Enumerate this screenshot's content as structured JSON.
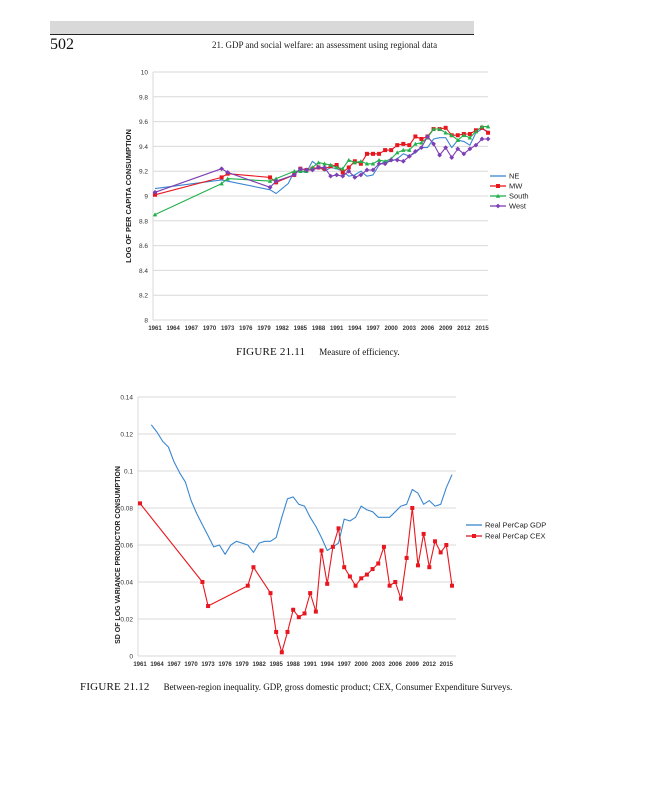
{
  "page": {
    "page_number": "502",
    "running_head": "21. GDP and social welfare: an assessment using regional data"
  },
  "figures": [
    {
      "label": "FIGURE 21.11",
      "caption": "Measure of efficiency."
    },
    {
      "label": "FIGURE 21.12",
      "caption": "Between-region inequality. GDP, gross domestic product; CEX, Consumer Expenditure Surveys."
    }
  ],
  "chart_data": [
    {
      "type": "line",
      "title": "",
      "xlabel": "",
      "ylabel": "LOG OF PER CAPITA CONSUMPTION",
      "ylim": [
        8,
        10
      ],
      "yticks": [
        "8",
        "8.2",
        "8.4",
        "8.6",
        "8.8",
        "9",
        "9.2",
        "9.4",
        "9.6",
        "9.8",
        "10"
      ],
      "xlim": [
        1961,
        2015
      ],
      "xticks": [
        "1961",
        "1964",
        "1967",
        "1970",
        "1973",
        "1976",
        "1979",
        "1982",
        "1985",
        "1988",
        "1991",
        "1994",
        "1997",
        "2000",
        "2003",
        "2006",
        "2009",
        "2012",
        "2015"
      ],
      "grid": "horizontal",
      "legend_position": "right",
      "series": [
        {
          "name": "NE",
          "color": "#3a87d0",
          "marker": "none",
          "x": [
            1961,
            1972,
            1980,
            1981,
            1983,
            1984,
            1985,
            1986,
            1987,
            1988,
            1989,
            1990,
            1991,
            1992,
            1993,
            1994,
            1995,
            1996,
            1997,
            1998,
            1999,
            2000,
            2001,
            2002,
            2003,
            2004,
            2005,
            2006,
            2007,
            2008,
            2009,
            2010,
            2011,
            2012,
            2013,
            2014,
            2015,
            2016
          ],
          "values": [
            9.06,
            9.13,
            9.05,
            9.02,
            9.1,
            9.2,
            9.2,
            9.19,
            9.28,
            9.24,
            9.2,
            9.23,
            9.22,
            9.2,
            9.16,
            9.17,
            9.2,
            9.16,
            9.17,
            9.25,
            9.28,
            9.28,
            9.3,
            9.34,
            9.32,
            9.35,
            9.39,
            9.39,
            9.46,
            9.47,
            9.47,
            9.39,
            9.45,
            9.44,
            9.41,
            9.51,
            9.54,
            9.52
          ]
        },
        {
          "name": "MW",
          "color": "#e8171f",
          "marker": "square",
          "x": [
            1961,
            1972,
            1973,
            1980,
            1981,
            1984,
            1985,
            1986,
            1987,
            1988,
            1989,
            1990,
            1991,
            1992,
            1993,
            1994,
            1995,
            1996,
            1997,
            1998,
            1999,
            2000,
            2001,
            2002,
            2003,
            2004,
            2005,
            2006,
            2007,
            2008,
            2009,
            2010,
            2011,
            2012,
            2013,
            2014,
            2015,
            2016
          ],
          "values": [
            9.01,
            9.15,
            9.18,
            9.15,
            9.11,
            9.17,
            9.22,
            9.21,
            9.22,
            9.23,
            9.22,
            9.24,
            9.25,
            9.19,
            9.23,
            9.28,
            9.26,
            9.34,
            9.34,
            9.34,
            9.37,
            9.37,
            9.41,
            9.42,
            9.41,
            9.48,
            9.46,
            9.48,
            9.54,
            9.54,
            9.55,
            9.49,
            9.49,
            9.5,
            9.5,
            9.53,
            9.55,
            9.51
          ]
        },
        {
          "name": "South",
          "color": "#23b04a",
          "marker": "triangle",
          "x": [
            1961,
            1972,
            1973,
            1980,
            1981,
            1984,
            1985,
            1986,
            1987,
            1988,
            1989,
            1990,
            1991,
            1992,
            1993,
            1994,
            1995,
            1996,
            1997,
            1998,
            1999,
            2000,
            2001,
            2002,
            2003,
            2004,
            2005,
            2006,
            2007,
            2008,
            2009,
            2010,
            2011,
            2012,
            2013,
            2014,
            2015,
            2016
          ],
          "values": [
            8.85,
            9.1,
            9.14,
            9.12,
            9.14,
            9.2,
            9.2,
            9.2,
            9.23,
            9.27,
            9.26,
            9.25,
            9.23,
            9.22,
            9.29,
            9.27,
            9.28,
            9.26,
            9.26,
            9.29,
            9.28,
            9.3,
            9.35,
            9.37,
            9.37,
            9.42,
            9.43,
            9.47,
            9.54,
            9.54,
            9.51,
            9.49,
            9.45,
            9.49,
            9.47,
            9.52,
            9.56,
            9.56
          ]
        },
        {
          "name": "West",
          "color": "#7d3fb5",
          "marker": "diamond",
          "x": [
            1961,
            1972,
            1973,
            1980,
            1981,
            1984,
            1985,
            1986,
            1987,
            1988,
            1989,
            1990,
            1991,
            1992,
            1993,
            1994,
            1995,
            1996,
            1997,
            1998,
            1999,
            2000,
            2001,
            2002,
            2003,
            2004,
            2005,
            2006,
            2007,
            2008,
            2009,
            2010,
            2011,
            2012,
            2013,
            2014,
            2015,
            2016
          ],
          "values": [
            9.03,
            9.22,
            9.19,
            9.07,
            9.12,
            9.17,
            9.22,
            9.21,
            9.21,
            9.23,
            9.23,
            9.16,
            9.17,
            9.16,
            9.2,
            9.15,
            9.17,
            9.21,
            9.21,
            9.26,
            9.26,
            9.29,
            9.29,
            9.28,
            9.32,
            9.36,
            9.39,
            9.48,
            9.42,
            9.33,
            9.39,
            9.31,
            9.38,
            9.34,
            9.38,
            9.41,
            9.46,
            9.46
          ]
        }
      ]
    },
    {
      "type": "line",
      "title": "",
      "xlabel": "",
      "ylabel": "SD OF LOG VARIANCE PRODUCTOR CONSUMPTION",
      "ylim": [
        0,
        0.14
      ],
      "yticks": [
        "0",
        "0.02",
        "0.04",
        "0.06",
        "0.08",
        "0.1",
        "0.12",
        "0.14"
      ],
      "xlim": [
        1961,
        2016
      ],
      "xticks": [
        "1961",
        "1964",
        "1967",
        "1970",
        "1973",
        "1976",
        "1979",
        "1982",
        "1985",
        "1988",
        "1991",
        "1994",
        "1997",
        "2000",
        "2003",
        "2006",
        "2009",
        "2012",
        "2015"
      ],
      "grid": "horizontal",
      "legend_position": "right",
      "series": [
        {
          "name": "Real PerCap GDP",
          "color": "#3a87d0",
          "marker": "none",
          "x": [
            1963,
            1964,
            1965,
            1966,
            1967,
            1968,
            1969,
            1970,
            1971,
            1972,
            1973,
            1974,
            1975,
            1976,
            1977,
            1978,
            1979,
            1980,
            1981,
            1982,
            1983,
            1984,
            1985,
            1986,
            1987,
            1988,
            1989,
            1990,
            1991,
            1992,
            1993,
            1994,
            1995,
            1996,
            1997,
            1998,
            1999,
            2000,
            2001,
            2002,
            2003,
            2004,
            2005,
            2006,
            2007,
            2008,
            2009,
            2010,
            2011,
            2012,
            2013,
            2014,
            2015,
            2016
          ],
          "values": [
            0.125,
            0.121,
            0.116,
            0.113,
            0.105,
            0.099,
            0.094,
            0.084,
            0.077,
            0.071,
            0.065,
            0.059,
            0.06,
            0.055,
            0.06,
            0.062,
            0.061,
            0.06,
            0.056,
            0.061,
            0.062,
            0.062,
            0.064,
            0.075,
            0.085,
            0.086,
            0.082,
            0.081,
            0.075,
            0.07,
            0.064,
            0.057,
            0.059,
            0.061,
            0.074,
            0.073,
            0.075,
            0.081,
            0.079,
            0.078,
            0.075,
            0.075,
            0.075,
            0.078,
            0.081,
            0.082,
            0.09,
            0.088,
            0.082,
            0.084,
            0.081,
            0.082,
            0.091,
            0.098
          ]
        },
        {
          "name": "Real PerCap CEX",
          "color": "#e8171f",
          "marker": "square",
          "x": [
            1961,
            1972,
            1973,
            1980,
            1981,
            1984,
            1985,
            1986,
            1987,
            1988,
            1989,
            1990,
            1991,
            1992,
            1993,
            1994,
            1995,
            1996,
            1997,
            1998,
            1999,
            2000,
            2001,
            2002,
            2003,
            2004,
            2005,
            2006,
            2007,
            2008,
            2009,
            2010,
            2011,
            2012,
            2013,
            2014,
            2015,
            2016
          ],
          "values": [
            0.0825,
            0.04,
            0.027,
            0.038,
            0.048,
            0.034,
            0.013,
            0.002,
            0.013,
            0.025,
            0.021,
            0.023,
            0.034,
            0.024,
            0.057,
            0.039,
            0.059,
            0.069,
            0.048,
            0.043,
            0.038,
            0.042,
            0.044,
            0.047,
            0.05,
            0.059,
            0.038,
            0.04,
            0.031,
            0.053,
            0.08,
            0.049,
            0.066,
            0.048,
            0.062,
            0.056,
            0.06,
            0.038
          ]
        }
      ]
    }
  ]
}
